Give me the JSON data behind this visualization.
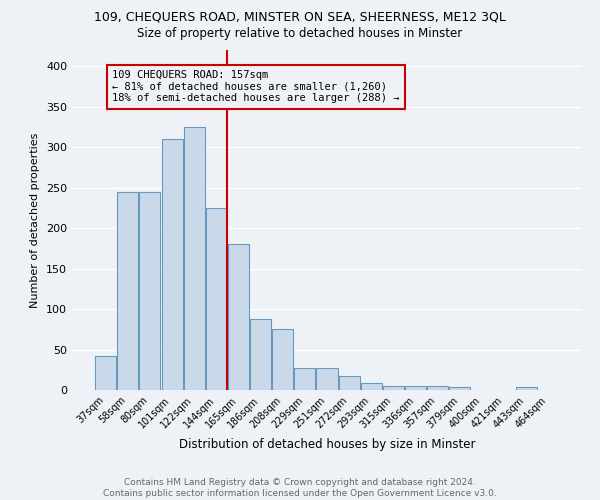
{
  "title1": "109, CHEQUERS ROAD, MINSTER ON SEA, SHEERNESS, ME12 3QL",
  "title2": "Size of property relative to detached houses in Minster",
  "xlabel": "Distribution of detached houses by size in Minster",
  "ylabel": "Number of detached properties",
  "footer": "Contains HM Land Registry data © Crown copyright and database right 2024.\nContains public sector information licensed under the Open Government Licence v3.0.",
  "bins": [
    "37sqm",
    "58sqm",
    "80sqm",
    "101sqm",
    "122sqm",
    "144sqm",
    "165sqm",
    "186sqm",
    "208sqm",
    "229sqm",
    "251sqm",
    "272sqm",
    "293sqm",
    "315sqm",
    "336sqm",
    "357sqm",
    "379sqm",
    "400sqm",
    "421sqm",
    "443sqm",
    "464sqm"
  ],
  "values": [
    42,
    245,
    245,
    310,
    325,
    225,
    180,
    88,
    75,
    27,
    27,
    17,
    9,
    5,
    5,
    5,
    4,
    0,
    0,
    4,
    0
  ],
  "bar_color": "#c9d9ea",
  "bar_edge_color": "#6699bb",
  "vline_color": "#cc0000",
  "annotation_text": "109 CHEQUERS ROAD: 157sqm\n← 81% of detached houses are smaller (1,260)\n18% of semi-detached houses are larger (288) →",
  "ylim": [
    0,
    420
  ],
  "yticks": [
    0,
    50,
    100,
    150,
    200,
    250,
    300,
    350,
    400
  ],
  "bg_color": "#eef2f7",
  "grid_color": "#ffffff"
}
